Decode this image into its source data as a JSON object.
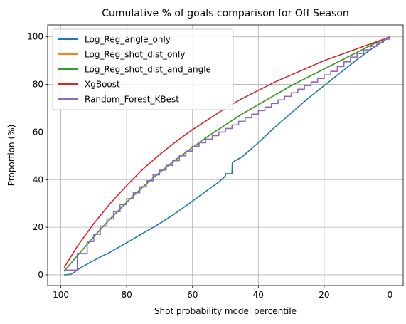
{
  "chart_data": {
    "type": "line",
    "title": "Cumulative % of goals comparison for Off Season",
    "xlabel": "Shot probability model percentile",
    "ylabel": "Proportion (%)",
    "xlim": [
      104,
      -4
    ],
    "ylim": [
      -4.5,
      105
    ],
    "x_reversed": true,
    "xticks": [
      100,
      80,
      60,
      40,
      20,
      0
    ],
    "yticks": [
      0,
      20,
      40,
      60,
      80,
      100
    ],
    "grid": true,
    "legend_position": "upper-left",
    "series": [
      {
        "name": "Log_Reg_angle_only",
        "color": "#1f77b4",
        "x": [
          99,
          97,
          96,
          95,
          94,
          92,
          90,
          88,
          85,
          80,
          75,
          70,
          65,
          60,
          55,
          52,
          50,
          49.9,
          48,
          47.9,
          45,
          40,
          35,
          30,
          25,
          20,
          15,
          10,
          5,
          0
        ],
        "y": [
          0,
          0.2,
          1,
          2,
          3,
          4.5,
          6,
          7.5,
          9.5,
          13.5,
          17.5,
          21.5,
          26,
          31,
          36,
          39,
          41.5,
          42.5,
          42.5,
          47.3,
          49.5,
          55.5,
          62,
          68,
          74,
          79.5,
          85,
          90.5,
          95.5,
          100
        ]
      },
      {
        "name": "Log_Reg_shot_dist_only",
        "color": "#ff7f0e",
        "x": [
          99,
          95,
          90,
          85,
          80,
          75,
          70,
          65,
          60,
          55,
          50,
          45,
          40,
          35,
          30,
          25,
          20,
          15,
          10,
          5,
          0
        ],
        "y": [
          1.5,
          8,
          16,
          23.5,
          30.5,
          37,
          43,
          48.5,
          53.5,
          58.5,
          63,
          67.5,
          71.5,
          75.5,
          79.5,
          83,
          86.5,
          90,
          93.5,
          97,
          100
        ]
      },
      {
        "name": "Log_Reg_shot_dist_and_angle",
        "color": "#2ca02c",
        "x": [
          99,
          95,
          90,
          85,
          80,
          75,
          70,
          65,
          60,
          55,
          50,
          45,
          40,
          35,
          30,
          25,
          20,
          15,
          10,
          5,
          0
        ],
        "y": [
          1.5,
          8,
          16,
          23.5,
          30.5,
          37,
          43,
          48.5,
          53.5,
          58.5,
          63,
          67.5,
          71.5,
          75.5,
          79.5,
          83,
          86.5,
          90,
          93.5,
          97,
          100
        ]
      },
      {
        "name": "XgBoost",
        "color": "#d62728",
        "x": [
          99,
          95,
          90,
          85,
          80,
          75,
          70,
          65,
          60,
          55,
          50,
          45,
          40,
          35,
          30,
          25,
          20,
          15,
          10,
          5,
          0
        ],
        "y": [
          3,
          12,
          21.5,
          30,
          37.5,
          44.5,
          50.5,
          56,
          61,
          65.5,
          70,
          74,
          77.5,
          81,
          84,
          87,
          90,
          92.5,
          95,
          97.5,
          100
        ]
      },
      {
        "name": "Random_Forest_KBest",
        "color": "#9467bd",
        "step": true,
        "x": [
          99,
          95,
          92,
          90,
          88,
          86,
          84,
          82,
          80,
          78,
          76,
          74,
          72,
          70,
          68,
          66,
          64,
          62,
          60,
          58,
          56,
          54,
          52,
          50,
          48,
          46,
          44,
          42,
          40,
          38,
          36,
          34,
          32,
          30,
          28,
          26,
          24,
          22,
          20,
          18,
          16,
          14,
          12,
          10,
          8,
          6,
          4,
          2,
          0
        ],
        "y": [
          2,
          9,
          14,
          17,
          20.5,
          23.5,
          26.5,
          29.5,
          32,
          34.5,
          37,
          39.5,
          42,
          44,
          46,
          48,
          50,
          52,
          54,
          55.5,
          57,
          58.5,
          60,
          61.5,
          63,
          64.5,
          66,
          67.5,
          69,
          70.5,
          72,
          73.5,
          75,
          76.5,
          78,
          79.5,
          81,
          82.5,
          84,
          85.5,
          87.5,
          89.5,
          91.5,
          93,
          94.5,
          96,
          97.5,
          99,
          100
        ]
      }
    ]
  }
}
